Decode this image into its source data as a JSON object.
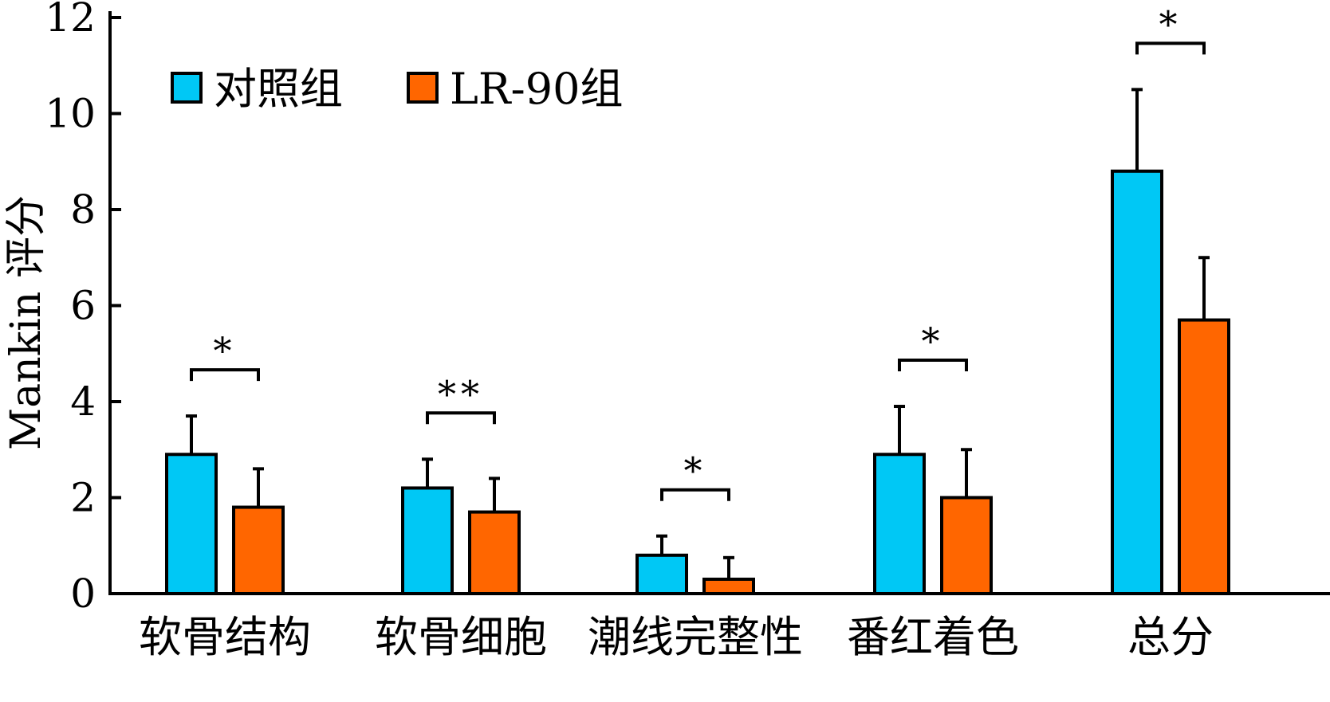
{
  "chart_data": {
    "type": "bar",
    "ylabel": "Mankin 评分",
    "xlabel": "",
    "ylim": [
      0,
      12
    ],
    "yticks": [
      "0",
      "2",
      "4",
      "6",
      "8",
      "10",
      "12"
    ],
    "categories": [
      "软骨结构",
      "软骨细胞",
      "潮线完整性",
      "番红着色",
      "总分"
    ],
    "series": [
      {
        "name": "对照组",
        "color": "#00c8f5",
        "values": [
          2.9,
          2.2,
          0.8,
          2.9,
          8.8
        ],
        "errors": [
          0.8,
          0.6,
          0.4,
          1.0,
          1.7
        ]
      },
      {
        "name": "LR-90组",
        "color": "#ff6600",
        "values": [
          1.8,
          1.7,
          0.3,
          2.0,
          5.7
        ],
        "errors": [
          0.8,
          0.7,
          0.45,
          1.0,
          1.3
        ]
      }
    ],
    "significance": [
      "*",
      "**",
      "*",
      "*",
      "*"
    ],
    "legend_position": "top-left",
    "grid": false
  }
}
